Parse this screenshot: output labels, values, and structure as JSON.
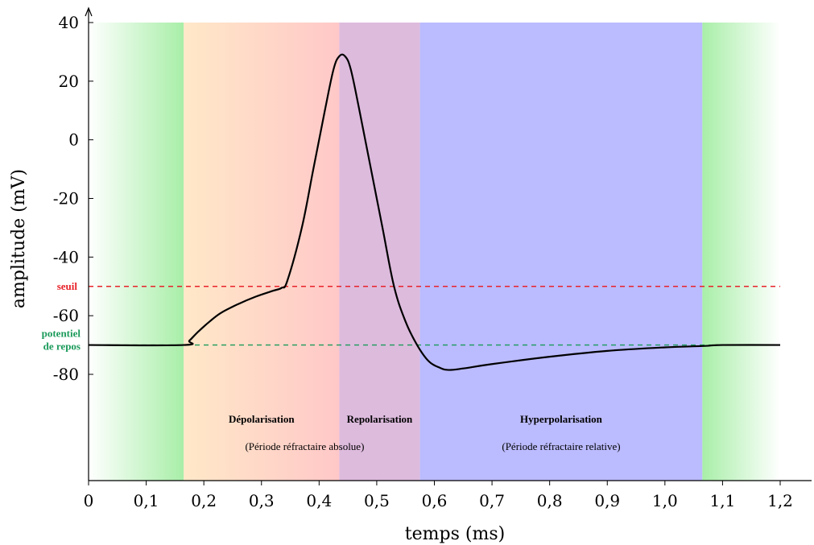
{
  "chart_data": {
    "type": "line",
    "title": "",
    "xlabel": "temps (ms)",
    "ylabel": "amplitude (mV)",
    "xlim": [
      0,
      1.2
    ],
    "ylim": [
      -80,
      40
    ],
    "x_ticks": [
      {
        "value": 0,
        "label": "0"
      },
      {
        "value": 0.1,
        "label": "0,1"
      },
      {
        "value": 0.2,
        "label": "0,2"
      },
      {
        "value": 0.3,
        "label": "0,3"
      },
      {
        "value": 0.4,
        "label": "0,4"
      },
      {
        "value": 0.5,
        "label": "0,5"
      },
      {
        "value": 0.6,
        "label": "0,6"
      },
      {
        "value": 0.7,
        "label": "0,7"
      },
      {
        "value": 0.8,
        "label": "0,8"
      },
      {
        "value": 0.9,
        "label": "0,9"
      },
      {
        "value": 1.0,
        "label": "1,0"
      },
      {
        "value": 1.1,
        "label": "1,1"
      },
      {
        "value": 1.2,
        "label": "1,2"
      }
    ],
    "y_ticks": [
      {
        "value": 40,
        "label": "40"
      },
      {
        "value": 20,
        "label": "20"
      },
      {
        "value": 0,
        "label": "0"
      },
      {
        "value": -20,
        "label": "-20"
      },
      {
        "value": -40,
        "label": "-40"
      },
      {
        "value": -60,
        "label": "-60"
      },
      {
        "value": -80,
        "label": "-80"
      }
    ],
    "grid": false,
    "series": [
      {
        "color": "#000000",
        "points": [
          [
            0.0,
            -70
          ],
          [
            0.165,
            -70
          ],
          [
            0.175,
            -68.5
          ],
          [
            0.19,
            -65.5
          ],
          [
            0.21,
            -62
          ],
          [
            0.23,
            -59
          ],
          [
            0.26,
            -56
          ],
          [
            0.29,
            -53.5
          ],
          [
            0.32,
            -51.5
          ],
          [
            0.335,
            -50.5
          ],
          [
            0.345,
            -48
          ],
          [
            0.37,
            -30
          ],
          [
            0.39,
            -10
          ],
          [
            0.41,
            10
          ],
          [
            0.425,
            24
          ],
          [
            0.435,
            28.5
          ],
          [
            0.445,
            28.5
          ],
          [
            0.455,
            24
          ],
          [
            0.47,
            10
          ],
          [
            0.49,
            -10
          ],
          [
            0.51,
            -30
          ],
          [
            0.53,
            -50
          ],
          [
            0.55,
            -62
          ],
          [
            0.57,
            -70
          ],
          [
            0.59,
            -75.5
          ],
          [
            0.61,
            -77.8
          ],
          [
            0.625,
            -78.5
          ],
          [
            0.65,
            -78
          ],
          [
            0.7,
            -76.5
          ],
          [
            0.8,
            -74
          ],
          [
            0.9,
            -72
          ],
          [
            1.0,
            -70.8
          ],
          [
            1.07,
            -70.3
          ],
          [
            1.1,
            -70
          ],
          [
            1.2,
            -70
          ]
        ]
      }
    ],
    "reference_lines": [
      {
        "y": -50,
        "label": "seuil",
        "color": "#e8232a",
        "dash": "dashed"
      },
      {
        "y": -70,
        "label_lines": [
          "potentiel",
          "de repos"
        ],
        "color": "#1a9a5a",
        "dash": "dashed"
      }
    ],
    "regions": [
      {
        "x_start": 0.0,
        "x_end": 0.165,
        "color": "#a8eea8",
        "fade": "left"
      },
      {
        "x_start": 0.165,
        "x_end": 0.435,
        "color_from": "#ffe8c8",
        "color_to": "#ffc8c8"
      },
      {
        "x_start": 0.435,
        "x_end": 0.575,
        "color": "#ddbbdd"
      },
      {
        "x_start": 0.575,
        "x_end": 1.065,
        "color": "#bbbbff"
      },
      {
        "x_start": 1.065,
        "x_end": 1.2,
        "color": "#a8eea8",
        "fade": "right"
      }
    ],
    "annotations": [
      {
        "text": "Dépolarisation",
        "kind": "name",
        "x": 0.3
      },
      {
        "text": "(Période réfractaire absolue)",
        "kind": "note",
        "x": 0.375
      },
      {
        "text": "Repolarisation",
        "kind": "name",
        "x": 0.505
      },
      {
        "text": "Hyperpolarisation",
        "kind": "name",
        "x": 0.82
      },
      {
        "text": "(Période réfractaire relative)",
        "kind": "note",
        "x": 0.82
      }
    ]
  }
}
